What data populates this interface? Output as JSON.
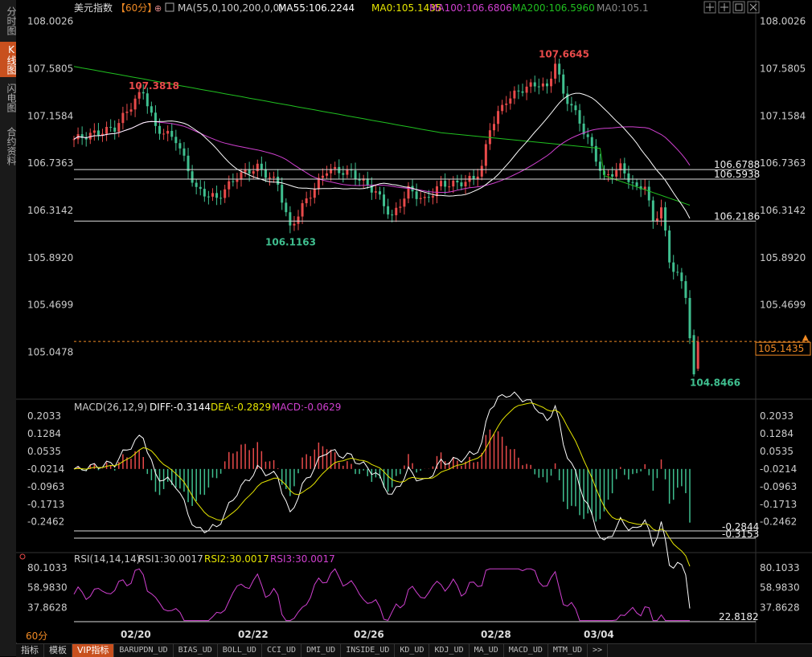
{
  "sidebar": {
    "tabs": [
      {
        "label": "分时图",
        "active": false
      },
      {
        "label": "K线图",
        "active": true
      },
      {
        "label": "闪电图",
        "active": false
      },
      {
        "label": "合约资料",
        "active": false
      }
    ]
  },
  "main": {
    "title": "美元指数",
    "period": "【60分】",
    "ma_label": "MA(55,0,100,200,0,0)",
    "ma55": "MA55:106.2244",
    "ma0a": "MA0:105.1435",
    "ma100": "MA100:106.6806",
    "ma200": "MA200:106.5960",
    "ma0b": "MA0:105.1",
    "y_ticks_left": [
      "108.0026",
      "107.5805",
      "107.1584",
      "106.7363",
      "106.3142",
      "105.8920",
      "105.4699",
      "105.0478"
    ],
    "y_ticks_right": [
      "108.0026",
      "107.5805",
      "107.1584",
      "106.7363",
      "106.3142",
      "105.8920",
      "105.4699",
      "105.0478"
    ],
    "levels": [
      {
        "label": "106.6788",
        "value": 106.6788
      },
      {
        "label": "106.5938",
        "value": 106.5938
      },
      {
        "label": "106.2186",
        "value": 106.2186
      }
    ],
    "current_price": "105.1435",
    "annotations": {
      "high1": "107.3818",
      "high2": "107.6645",
      "low1": "106.1163",
      "low2": "104.8466"
    }
  },
  "macd": {
    "label": "MACD(26,12,9)",
    "diff": "DIFF:-0.3144",
    "dea": "DEA:-0.2829",
    "macd": "MACD:-0.0629",
    "y_ticks": [
      "0.2033",
      "0.1284",
      "0.0535",
      "-0.0214",
      "-0.0963",
      "-0.1713",
      "-0.2462"
    ],
    "levels": [
      "-0.2844",
      "-0.3153"
    ]
  },
  "rsi": {
    "label": "RSI(14,14,14)",
    "rsi1": "RSI1:30.0017",
    "rsi2": "RSI2:30.0017",
    "rsi3": "RSI3:30.0017",
    "y_ticks": [
      "80.1033",
      "58.9830",
      "37.8628"
    ],
    "level": "22.8182"
  },
  "x_labels": [
    "02/20",
    "02/22",
    "02/26",
    "02/28",
    "03/04"
  ],
  "bottom_period": "60分",
  "bottom_tabs": [
    {
      "label": "指标",
      "active": false,
      "ind": false
    },
    {
      "label": "模板",
      "active": false,
      "ind": false
    },
    {
      "label": "VIP指标",
      "active": true,
      "ind": false
    },
    {
      "label": "BARUPDN_UD",
      "active": false,
      "ind": true
    },
    {
      "label": "BIAS_UD",
      "active": false,
      "ind": true
    },
    {
      "label": "BOLL_UD",
      "active": false,
      "ind": true
    },
    {
      "label": "CCI_UD",
      "active": false,
      "ind": true
    },
    {
      "label": "DMI_UD",
      "active": false,
      "ind": true
    },
    {
      "label": "INSIDE_UD",
      "active": false,
      "ind": true
    },
    {
      "label": "KD_UD",
      "active": false,
      "ind": true
    },
    {
      "label": "KDJ_UD",
      "active": false,
      "ind": true
    },
    {
      "label": "MA_UD",
      "active": false,
      "ind": true
    },
    {
      "label": "MACD_UD",
      "active": false,
      "ind": true
    },
    {
      "label": "MTM_UD",
      "active": false,
      "ind": true
    },
    {
      "label": ">>",
      "active": false,
      "ind": true
    }
  ],
  "colors": {
    "up": "#e84a4a",
    "down": "#3fbf8f",
    "ma55": "#ffffff",
    "ma0": "#e6e600",
    "ma100": "#d040d0",
    "ma200": "#20c020",
    "macd_diff": "#ffffff",
    "macd_dea": "#e6e600"
  },
  "chart_data": {
    "type": "candlestick",
    "ylim": [
      104.75,
      108.05
    ],
    "key_points": [
      {
        "label": "02/20",
        "high": 107.3818
      },
      {
        "label": "02/22",
        "low": 106.1163
      },
      {
        "label": "02/28",
        "high": 107.6645
      },
      {
        "label": "03/04",
        "low": 104.8466
      }
    ]
  }
}
